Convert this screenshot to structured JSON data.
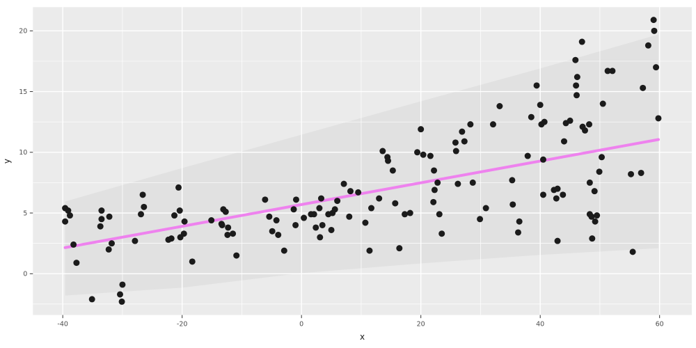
{
  "figure": {
    "background": "#FFFFFF",
    "panel_background": "#EBEBEB",
    "grid_color": "#FFFFFF",
    "tick_mark_color": "#333333",
    "tick_label_color": "#4D4D4D",
    "axis_title_color": "#1A1A1A"
  },
  "chart_data": {
    "type": "scatter",
    "title": "",
    "xlabel": "x",
    "ylabel": "y",
    "legend": "none",
    "grid": true,
    "xlim": [
      -45,
      65.4
    ],
    "ylim": [
      -3.4,
      21.95
    ],
    "x_ticks": [
      -40,
      -20,
      0,
      20,
      40,
      60
    ],
    "y_ticks": [
      0,
      5,
      10,
      15,
      20
    ],
    "x_minor_ticks": [
      -30,
      -10,
      10,
      30,
      50
    ],
    "y_minor_ticks": [
      -2.5,
      2.5,
      7.5,
      12.5,
      17.5
    ],
    "point_color": "#1B1B1B",
    "point_radius": 4.5,
    "points": [
      [
        -39.6,
        5.4
      ],
      [
        -39.1,
        5.2
      ],
      [
        -38.8,
        4.8
      ],
      [
        -39.6,
        4.3
      ],
      [
        -38.2,
        2.4
      ],
      [
        -37.7,
        0.9
      ],
      [
        -35.1,
        -2.1
      ],
      [
        -33.5,
        5.2
      ],
      [
        -33.5,
        4.5
      ],
      [
        -33.7,
        3.9
      ],
      [
        -32.2,
        4.7
      ],
      [
        -32.3,
        2.0
      ],
      [
        -31.8,
        2.5
      ],
      [
        -30.4,
        -1.7
      ],
      [
        -30.1,
        -2.3
      ],
      [
        -30.0,
        -0.9
      ],
      [
        -27.9,
        2.7
      ],
      [
        -26.6,
        6.5
      ],
      [
        -26.9,
        4.9
      ],
      [
        -26.4,
        5.5
      ],
      [
        -20.6,
        7.1
      ],
      [
        -20.4,
        5.2
      ],
      [
        -21.3,
        4.8
      ],
      [
        -19.6,
        4.3
      ],
      [
        -19.7,
        3.3
      ],
      [
        -20.3,
        3.0
      ],
      [
        -21.8,
        2.9
      ],
      [
        -22.3,
        2.8
      ],
      [
        -18.3,
        1.0
      ],
      [
        -15.1,
        4.4
      ],
      [
        -13.1,
        5.3
      ],
      [
        -12.7,
        5.1
      ],
      [
        -13.4,
        4.1
      ],
      [
        -13.3,
        4.0
      ],
      [
        -12.3,
        3.8
      ],
      [
        -12.4,
        3.2
      ],
      [
        -11.5,
        3.3
      ],
      [
        -10.9,
        1.5
      ],
      [
        -6.1,
        6.1
      ],
      [
        -5.4,
        4.7
      ],
      [
        -4.9,
        3.5
      ],
      [
        -4.2,
        4.4
      ],
      [
        -3.9,
        3.2
      ],
      [
        -2.9,
        1.9
      ],
      [
        -0.9,
        6.1
      ],
      [
        -1.3,
        5.3
      ],
      [
        -1.0,
        4.0
      ],
      [
        0.4,
        4.6
      ],
      [
        1.6,
        4.9
      ],
      [
        2.1,
        4.9
      ],
      [
        3.3,
        6.2
      ],
      [
        3.0,
        5.4
      ],
      [
        2.4,
        3.8
      ],
      [
        3.5,
        4.0
      ],
      [
        3.1,
        3.0
      ],
      [
        4.5,
        4.9
      ],
      [
        5.2,
        5.0
      ],
      [
        5.6,
        5.3
      ],
      [
        5.0,
        3.6
      ],
      [
        6.0,
        6.0
      ],
      [
        7.1,
        7.4
      ],
      [
        8.2,
        6.8
      ],
      [
        9.5,
        6.7
      ],
      [
        8.0,
        4.7
      ],
      [
        10.7,
        4.2
      ],
      [
        11.7,
        5.4
      ],
      [
        11.4,
        1.9
      ],
      [
        13.0,
        6.2
      ],
      [
        15.3,
        8.5
      ],
      [
        15.7,
        5.8
      ],
      [
        16.4,
        2.1
      ],
      [
        17.3,
        4.9
      ],
      [
        18.2,
        5.0
      ],
      [
        22.2,
        8.5
      ],
      [
        22.8,
        7.5
      ],
      [
        22.3,
        6.9
      ],
      [
        22.1,
        5.9
      ],
      [
        23.1,
        4.9
      ],
      [
        23.5,
        3.3
      ],
      [
        26.2,
        7.4
      ],
      [
        28.7,
        7.5
      ],
      [
        29.9,
        4.5
      ],
      [
        30.9,
        5.4
      ],
      [
        35.3,
        7.7
      ],
      [
        35.4,
        5.7
      ],
      [
        36.5,
        4.3
      ],
      [
        36.3,
        3.4
      ],
      [
        13.6,
        10.1
      ],
      [
        14.4,
        9.6
      ],
      [
        14.5,
        9.3
      ],
      [
        20.0,
        11.9
      ],
      [
        19.4,
        10.0
      ],
      [
        20.4,
        9.8
      ],
      [
        21.6,
        9.7
      ],
      [
        25.8,
        10.8
      ],
      [
        25.9,
        10.1
      ],
      [
        26.9,
        11.7
      ],
      [
        27.3,
        10.9
      ],
      [
        28.3,
        12.3
      ],
      [
        32.1,
        12.3
      ],
      [
        33.2,
        13.8
      ],
      [
        38.5,
        12.9
      ],
      [
        37.9,
        9.7
      ],
      [
        59.0,
        20.9
      ],
      [
        59.1,
        20.0
      ],
      [
        47.0,
        19.1
      ],
      [
        58.1,
        18.8
      ],
      [
        45.9,
        17.6
      ],
      [
        59.4,
        17.0
      ],
      [
        51.3,
        16.7
      ],
      [
        52.1,
        16.7
      ],
      [
        46.2,
        16.2
      ],
      [
        39.4,
        15.5
      ],
      [
        46.0,
        15.5
      ],
      [
        57.2,
        15.3
      ],
      [
        46.1,
        14.7
      ],
      [
        40.0,
        13.9
      ],
      [
        50.5,
        14.0
      ],
      [
        40.2,
        12.3
      ],
      [
        40.7,
        12.5
      ],
      [
        44.3,
        12.4
      ],
      [
        45.0,
        12.6
      ],
      [
        47.1,
        12.1
      ],
      [
        47.5,
        11.8
      ],
      [
        48.2,
        12.3
      ],
      [
        59.8,
        12.8
      ],
      [
        44.0,
        10.9
      ],
      [
        50.3,
        9.6
      ],
      [
        40.5,
        9.4
      ],
      [
        49.9,
        8.4
      ],
      [
        55.2,
        8.2
      ],
      [
        56.9,
        8.3
      ],
      [
        48.3,
        7.5
      ],
      [
        40.5,
        6.5
      ],
      [
        42.3,
        6.9
      ],
      [
        42.9,
        7.0
      ],
      [
        42.7,
        6.2
      ],
      [
        43.8,
        6.5
      ],
      [
        49.1,
        6.8
      ],
      [
        48.3,
        4.9
      ],
      [
        48.6,
        4.7
      ],
      [
        49.5,
        4.8
      ],
      [
        49.2,
        4.3
      ],
      [
        48.7,
        2.9
      ],
      [
        42.9,
        2.7
      ],
      [
        55.5,
        1.8
      ]
    ],
    "trend_line": {
      "type": "linear",
      "color": "#EE82EE",
      "width": 4,
      "x_start": -39.6,
      "y_start": 2.15,
      "x_end": 59.8,
      "y_end": 11.05
    },
    "confidence_band": {
      "color": "#E1E1E1",
      "x": [
        -39.6,
        -20.0,
        0.0,
        20.0,
        40.0,
        59.8
      ],
      "upper": [
        5.95,
        8.7,
        11.45,
        14.2,
        16.9,
        19.7
      ],
      "lower": [
        -1.8,
        -1.15,
        0.05,
        0.85,
        1.55,
        2.1
      ]
    }
  }
}
